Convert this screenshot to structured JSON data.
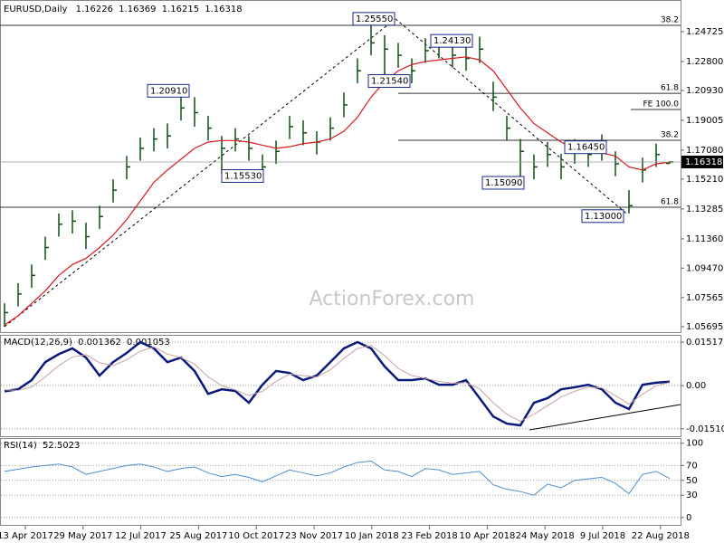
{
  "chart_data": [
    {
      "type": "ohlc",
      "title": "EURUSD,Daily",
      "last_open": 1.16226,
      "color": "#0d4f12",
      "high": [
        1.072,
        1.085,
        1.097,
        1.115,
        1.13,
        1.132,
        1.124,
        1.135,
        1.152,
        1.167,
        1.179,
        1.185,
        1.188,
        1.2091,
        1.205,
        1.193,
        1.18,
        1.185,
        1.18,
        1.168,
        1.177,
        1.193,
        1.19,
        1.183,
        1.192,
        1.208,
        1.23,
        1.2555,
        1.245,
        1.24,
        1.23,
        1.243,
        1.2413,
        1.24,
        1.237,
        1.244,
        1.215,
        1.193,
        1.178,
        1.168,
        1.176,
        1.1685,
        1.178,
        1.176,
        1.181,
        1.17,
        1.145,
        1.166,
        1.175,
        1.16369
      ],
      "low": [
        1.0569,
        1.07,
        1.082,
        1.1,
        1.115,
        1.117,
        1.107,
        1.12,
        1.137,
        1.152,
        1.164,
        1.17,
        1.172,
        1.19,
        1.186,
        1.177,
        1.1553,
        1.17,
        1.164,
        1.156,
        1.162,
        1.178,
        1.174,
        1.168,
        1.177,
        1.192,
        1.214,
        1.232,
        1.2154,
        1.224,
        1.214,
        1.227,
        1.23,
        1.224,
        1.222,
        1.227,
        1.196,
        1.177,
        1.1509,
        1.152,
        1.16,
        1.152,
        1.162,
        1.16,
        1.164,
        1.154,
        1.13,
        1.15,
        1.16,
        1.16215
      ],
      "close": [
        1.066,
        1.078,
        1.09,
        1.108,
        1.123,
        1.125,
        1.115,
        1.128,
        1.145,
        1.16,
        1.172,
        1.178,
        1.18,
        1.198,
        1.195,
        1.185,
        1.172,
        1.178,
        1.172,
        1.16,
        1.17,
        1.186,
        1.182,
        1.176,
        1.185,
        1.2,
        1.222,
        1.24,
        1.236,
        1.232,
        1.222,
        1.235,
        1.238,
        1.232,
        1.23,
        1.236,
        1.205,
        1.185,
        1.17,
        1.16,
        1.168,
        1.16,
        1.17,
        1.168,
        1.172,
        1.162,
        1.135,
        1.158,
        1.168,
        1.16318
      ],
      "ma": {
        "color": "#d8181f",
        "values": [
          1.058,
          1.064,
          1.072,
          1.08,
          1.09,
          1.097,
          1.101,
          1.108,
          1.116,
          1.126,
          1.138,
          1.15,
          1.158,
          1.165,
          1.172,
          1.176,
          1.177,
          1.177,
          1.176,
          1.174,
          1.172,
          1.173,
          1.175,
          1.176,
          1.178,
          1.183,
          1.192,
          1.205,
          1.215,
          1.222,
          1.226,
          1.228,
          1.229,
          1.23,
          1.231,
          1.229,
          1.222,
          1.21,
          1.198,
          1.188,
          1.182,
          1.176,
          1.172,
          1.17,
          1.169,
          1.167,
          1.16,
          1.158,
          1.162,
          1.163
        ]
      },
      "ylim": [
        1.0534,
        1.2595
      ],
      "yticks": [
        {
          "value": 1.24725,
          "label": "1.24725"
        },
        {
          "value": 1.228,
          "label": "1.22800"
        },
        {
          "value": 1.2093,
          "label": "1.20930"
        },
        {
          "value": 1.19005,
          "label": "1.19005"
        },
        {
          "value": 1.1708,
          "label": "1.17080"
        },
        {
          "value": 1.1521,
          "label": "1.15210"
        },
        {
          "value": 1.13285,
          "label": "1.13285"
        },
        {
          "value": 1.1136,
          "label": "1.11360"
        },
        {
          "value": 1.0947,
          "label": "1.09470"
        },
        {
          "value": 1.07565,
          "label": "1.07565"
        },
        {
          "value": 1.05695,
          "label": "1.05695"
        }
      ],
      "levels": [
        {
          "label": "38.2",
          "value": 1.2513
        },
        {
          "label": "61.8",
          "value": 1.2075
        },
        {
          "label": "FE 100.0",
          "value": 1.197
        },
        {
          "label": "38.2",
          "value": 1.1772
        },
        {
          "label": "61.8",
          "value": 1.134
        }
      ],
      "annotations": [
        {
          "value": 1.2555,
          "label": "1.25550"
        },
        {
          "value": 1.2413,
          "label": "1.24130"
        },
        {
          "value": 1.2154,
          "label": "1.21540"
        },
        {
          "value": 1.2091,
          "label": "1.20910"
        },
        {
          "value": 1.1553,
          "label": "1.15530"
        },
        {
          "value": 1.1509,
          "label": "1.15090"
        },
        {
          "value": 1.1645,
          "label": "1.16450"
        },
        {
          "value": 1.13,
          "label": "1.13000"
        }
      ],
      "watermark": "ActionForex.com",
      "date_labels": [
        "13 Apr 2017",
        "29 May 2017",
        "12 Jul 2017",
        "25 Aug 2017",
        "10 Oct 2017",
        "23 Nov 2017",
        "10 Jan 2018",
        "23 Feb 2018",
        "10 Apr 2018",
        "24 May 2018",
        "9 Jul 2018",
        "22 Aug 2018"
      ]
    },
    {
      "type": "macd",
      "title": "MACD(12,26,9)",
      "grid": true,
      "series": [
        {
          "color": "#0a1a7a",
          "values": [
            -0.002,
            -0.0013,
            0.0019,
            0.0082,
            0.011,
            0.013,
            0.0098,
            0.0035,
            0.0082,
            0.0114,
            0.0152,
            0.013,
            0.0082,
            0.0098,
            0.0051,
            -0.0029,
            -0.0013,
            -0.0019,
            -0.006,
            0.0003,
            0.0051,
            0.0044,
            0.0019,
            0.0035,
            0.0082,
            0.013,
            0.0152,
            0.013,
            0.0067,
            0.0019,
            0.0019,
            0.0025,
            0.0003,
            0.0003,
            0.0019,
            -0.0044,
            -0.0108,
            -0.0133,
            -0.0139,
            -0.006,
            -0.0044,
            -0.0013,
            -0.0006,
            0.0003,
            -0.0013,
            -0.006,
            -0.0082,
            0.0003,
            0.001,
            0.001362
          ]
        },
        {
          "color": "#c9a3a3",
          "values": [
            -0.0015,
            -0.0017,
            -0.0005,
            0.003,
            0.007,
            0.01,
            0.0108,
            0.008,
            0.007,
            0.009,
            0.012,
            0.0135,
            0.011,
            0.0098,
            0.0075,
            0.003,
            0.0,
            -0.0015,
            -0.0035,
            -0.002,
            0.0015,
            0.004,
            0.0035,
            0.003,
            0.0055,
            0.0095,
            0.013,
            0.014,
            0.0105,
            0.006,
            0.0035,
            0.0025,
            0.0015,
            0.0008,
            0.001,
            -0.0012,
            -0.006,
            -0.01,
            -0.0125,
            -0.01,
            -0.007,
            -0.004,
            -0.002,
            -0.0005,
            -0.0008,
            -0.0035,
            -0.0065,
            -0.003,
            0.0,
            0.001053
          ]
        }
      ],
      "ylim": [
        -0.0177,
        0.0171
      ],
      "yticks": [
        0.015176,
        {
          "value": 0,
          "label": "0.00"
        },
        -0.015105
      ]
    },
    {
      "type": "rsi",
      "title": "RSI(14)",
      "grid": true,
      "color": "#4f8fd0",
      "values": [
        62,
        65,
        68,
        70,
        72,
        68,
        58,
        62,
        66,
        70,
        72,
        68,
        62,
        66,
        68,
        60,
        55,
        58,
        54,
        48,
        56,
        64,
        60,
        56,
        60,
        68,
        74,
        76,
        64,
        62,
        55,
        66,
        64,
        58,
        60,
        62,
        44,
        38,
        35,
        30,
        45,
        40,
        50,
        52,
        54,
        46,
        32,
        58,
        62,
        52.5023
      ],
      "ylim": [
        -10,
        107
      ],
      "yticks": [
        100,
        70,
        50,
        30,
        0
      ]
    }
  ]
}
